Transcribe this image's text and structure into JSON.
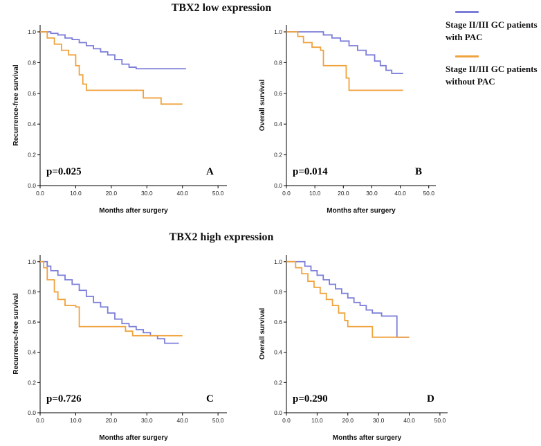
{
  "figure": {
    "titles": {
      "top": "TBX2 low expression",
      "bottom": "TBX2 high expression"
    },
    "legend": {
      "items": [
        {
          "label": "Stage II/III GC patients with PAC",
          "color": "#7b7dd8"
        },
        {
          "label": "Stage II/III GC patients without PAC",
          "color": "#f0a23c"
        }
      ]
    }
  },
  "chart_data": [
    {
      "type": "line",
      "style": "kaplan-meier-step",
      "panel_label": "A",
      "group": "TBX2 low expression",
      "xlabel": "Months after surgery",
      "ylabel": "Recurrence-free survival",
      "p_value": "p=0.025",
      "xlim": [
        0,
        50
      ],
      "ylim": [
        0,
        1.0
      ],
      "xticks": [
        0,
        10,
        20,
        30,
        40,
        50
      ],
      "yticks": [
        0,
        0.2,
        0.4,
        0.6,
        0.8,
        1.0
      ],
      "legend_position": "right-outside",
      "series": [
        {
          "name": "Stage II/III GC patients with PAC",
          "color": "#7b7dd8",
          "x": [
            0,
            3,
            5,
            7,
            9,
            11,
            13,
            15,
            17,
            19,
            21,
            23,
            25,
            27,
            41
          ],
          "y": [
            1.0,
            0.99,
            0.98,
            0.96,
            0.95,
            0.93,
            0.91,
            0.89,
            0.87,
            0.85,
            0.82,
            0.79,
            0.77,
            0.76,
            0.76
          ]
        },
        {
          "name": "Stage II/III GC patients without PAC",
          "color": "#f0a23c",
          "x": [
            0,
            2,
            4,
            6,
            8,
            10,
            11,
            12,
            13,
            27,
            29,
            34,
            40
          ],
          "y": [
            1.0,
            0.96,
            0.92,
            0.88,
            0.85,
            0.78,
            0.72,
            0.66,
            0.62,
            0.62,
            0.57,
            0.53,
            0.53
          ]
        }
      ]
    },
    {
      "type": "line",
      "style": "kaplan-meier-step",
      "panel_label": "B",
      "group": "TBX2 low expression",
      "xlabel": "Months after surgery",
      "ylabel": "Overall survival",
      "p_value": "p=0.014",
      "xlim": [
        0,
        50
      ],
      "ylim": [
        0,
        1.0
      ],
      "xticks": [
        0,
        10,
        20,
        30,
        40,
        50
      ],
      "yticks": [
        0,
        0.2,
        0.4,
        0.6,
        0.8,
        1.0
      ],
      "legend_position": "right-outside",
      "series": [
        {
          "name": "Stage II/III GC patients with PAC",
          "color": "#7b7dd8",
          "x": [
            0,
            10,
            13,
            16,
            19,
            22,
            25,
            28,
            31,
            33,
            35,
            37,
            41
          ],
          "y": [
            1.0,
            1.0,
            0.98,
            0.96,
            0.94,
            0.91,
            0.88,
            0.85,
            0.81,
            0.78,
            0.75,
            0.73,
            0.73
          ]
        },
        {
          "name": "Stage II/III GC patients without PAC",
          "color": "#f0a23c",
          "x": [
            0,
            4,
            6,
            9,
            12,
            13,
            20,
            21,
            22,
            41
          ],
          "y": [
            1.0,
            0.97,
            0.93,
            0.9,
            0.88,
            0.78,
            0.78,
            0.7,
            0.62,
            0.62
          ]
        }
      ]
    },
    {
      "type": "line",
      "style": "kaplan-meier-step",
      "panel_label": "C",
      "group": "TBX2 high expression",
      "xlabel": "Months after surgery",
      "ylabel": "Recurrence-free survival",
      "p_value": "p=0.726",
      "xlim": [
        0,
        50
      ],
      "ylim": [
        0,
        1.0
      ],
      "xticks": [
        0,
        10,
        20,
        30,
        40,
        50
      ],
      "yticks": [
        0,
        0.2,
        0.4,
        0.6,
        0.8,
        1.0
      ],
      "legend_position": "right-outside",
      "series": [
        {
          "name": "Stage II/III GC patients with PAC",
          "color": "#7b7dd8",
          "x": [
            0,
            2,
            3,
            5,
            7,
            9,
            11,
            13,
            15,
            17,
            19,
            21,
            23,
            25,
            27,
            29,
            31,
            33,
            35,
            39
          ],
          "y": [
            1.0,
            0.97,
            0.94,
            0.91,
            0.88,
            0.85,
            0.81,
            0.77,
            0.73,
            0.7,
            0.66,
            0.62,
            0.59,
            0.57,
            0.55,
            0.53,
            0.51,
            0.49,
            0.46,
            0.46
          ]
        },
        {
          "name": "Stage II/III GC patients without PAC",
          "color": "#f0a23c",
          "x": [
            0,
            1,
            2,
            4,
            5,
            7,
            10,
            11,
            21,
            24,
            26,
            40
          ],
          "y": [
            1.0,
            0.96,
            0.88,
            0.8,
            0.75,
            0.71,
            0.7,
            0.57,
            0.57,
            0.54,
            0.51,
            0.51
          ]
        }
      ]
    },
    {
      "type": "line",
      "style": "kaplan-meier-step",
      "panel_label": "D",
      "group": "TBX2 high expression",
      "xlabel": "Months after surgery",
      "ylabel": "Overall survival",
      "p_value": "p=0.290",
      "xlim": [
        0,
        50
      ],
      "ylim": [
        0,
        1.0
      ],
      "xticks": [
        0,
        10,
        20,
        30,
        40,
        50
      ],
      "yticks": [
        0,
        0.2,
        0.4,
        0.6,
        0.8,
        1.0
      ],
      "legend_position": "right-outside",
      "series": [
        {
          "name": "Stage II/III GC patients with PAC",
          "color": "#7b7dd8",
          "x": [
            0,
            4,
            6,
            8,
            10,
            12,
            14,
            16,
            18,
            20,
            22,
            24,
            26,
            28,
            31,
            35,
            36,
            40
          ],
          "y": [
            1.0,
            1.0,
            0.97,
            0.94,
            0.91,
            0.88,
            0.85,
            0.82,
            0.79,
            0.76,
            0.73,
            0.71,
            0.68,
            0.66,
            0.64,
            0.64,
            0.5,
            0.5
          ]
        },
        {
          "name": "Stage II/III GC patients without PAC",
          "color": "#f0a23c",
          "x": [
            0,
            3,
            5,
            7,
            9,
            11,
            13,
            15,
            17,
            19,
            20,
            27,
            28,
            40
          ],
          "y": [
            1.0,
            0.96,
            0.92,
            0.87,
            0.83,
            0.79,
            0.75,
            0.71,
            0.66,
            0.61,
            0.57,
            0.57,
            0.5,
            0.5
          ]
        }
      ]
    }
  ]
}
